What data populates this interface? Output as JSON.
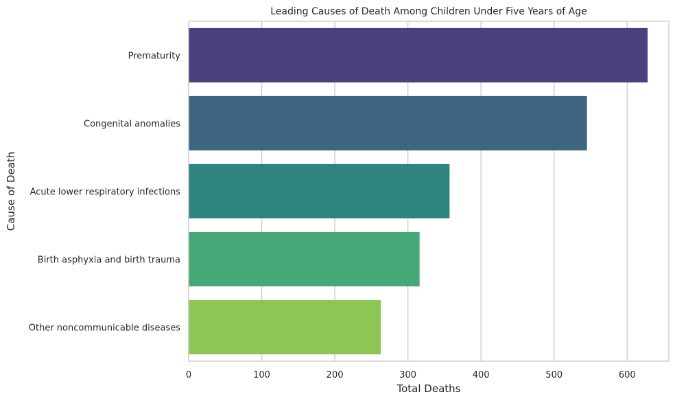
{
  "chart_data": {
    "type": "bar",
    "orientation": "horizontal",
    "title": "Leading Causes of Death Among Children Under Five Years of Age",
    "xlabel": "Total Deaths",
    "ylabel": "Cause of Death",
    "categories": [
      "Prematurity",
      "Congenital anomalies",
      "Acute lower respiratory infections",
      "Birth asphyxia and birth trauma",
      "Other noncommunicable diseases"
    ],
    "values": [
      628,
      545,
      357,
      316,
      263
    ],
    "colors": [
      "#4b3f7e",
      "#3e6683",
      "#2e8580",
      "#46a877",
      "#8ec655"
    ],
    "xlim": [
      0,
      657
    ],
    "xticks": [
      0,
      100,
      200,
      300,
      400,
      500,
      600
    ],
    "grid": "vertical",
    "grid_color": "#cccccc",
    "frame_color": "#cccccc",
    "text_color": "#262626"
  }
}
